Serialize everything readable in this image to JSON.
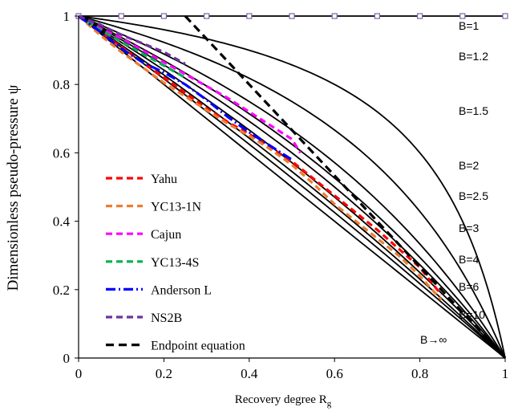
{
  "chart_data": {
    "type": "line",
    "xlabel": "Recovery degree R",
    "xlabel_sub": "g",
    "ylabel": "Dimensionless pseudo-pressure ψ",
    "xlim": [
      0,
      1
    ],
    "ylim": [
      0,
      1
    ],
    "x_ticks": [
      "0",
      "0.2",
      "0.4",
      "0.6",
      "0.8",
      "1"
    ],
    "y_ticks": [
      "0",
      "0.2",
      "0.4",
      "0.6",
      "0.8",
      "1"
    ],
    "grid": false,
    "legend_position": "bottom-left",
    "model_curves": [
      {
        "name": "B=1",
        "B": 1
      },
      {
        "name": "B=1.2",
        "B": 1.2
      },
      {
        "name": "B=1.5",
        "B": 1.5
      },
      {
        "name": "B=2",
        "B": 2
      },
      {
        "name": "B=2.5",
        "B": 2.5
      },
      {
        "name": "B=3",
        "B": 3
      },
      {
        "name": "B=4",
        "B": 4
      },
      {
        "name": "B=6",
        "B": 6
      },
      {
        "name": "B=10",
        "B": 10
      },
      {
        "name": "B→∞",
        "B": null
      }
    ],
    "b1_markers": {
      "x": [
        0,
        0.1,
        0.2,
        0.3,
        0.4,
        0.5,
        0.6,
        0.7,
        0.8,
        0.9,
        1.0
      ],
      "y": 1.0
    },
    "series": [
      {
        "name": "Yahu",
        "color": "#ff0000",
        "x": [
          0,
          0.05,
          0.1,
          0.15,
          0.2,
          0.25,
          0.3,
          0.35,
          0.4,
          0.45,
          0.5,
          0.55,
          0.6,
          0.65,
          0.7,
          0.75,
          0.8,
          0.85
        ],
        "y": [
          1.0,
          0.955,
          0.91,
          0.865,
          0.82,
          0.775,
          0.73,
          0.69,
          0.655,
          0.615,
          0.575,
          0.525,
          0.475,
          0.425,
          0.375,
          0.32,
          0.265,
          0.185
        ]
      },
      {
        "name": "YC13-1N",
        "color": "#ed7d31",
        "x": [
          0,
          0.05,
          0.1,
          0.15,
          0.2,
          0.25,
          0.3,
          0.35,
          0.4,
          0.45,
          0.5,
          0.55,
          0.6,
          0.65,
          0.7,
          0.75,
          0.8,
          0.85
        ],
        "y": [
          1.0,
          0.945,
          0.895,
          0.85,
          0.805,
          0.765,
          0.725,
          0.685,
          0.65,
          0.61,
          0.565,
          0.51,
          0.45,
          0.4,
          0.35,
          0.3,
          0.24,
          0.17
        ]
      },
      {
        "name": "Cajun",
        "color": "#ff00ff",
        "x": [
          0,
          0.05,
          0.1,
          0.15,
          0.2,
          0.25,
          0.3,
          0.35,
          0.4,
          0.45,
          0.5,
          0.52
        ],
        "y": [
          1.0,
          0.965,
          0.935,
          0.9,
          0.865,
          0.83,
          0.795,
          0.76,
          0.72,
          0.68,
          0.64,
          0.6
        ]
      },
      {
        "name": "YC13-4S",
        "color": "#00b050",
        "x": [
          0,
          0.05,
          0.1,
          0.15,
          0.2,
          0.25
        ],
        "y": [
          1.0,
          0.96,
          0.925,
          0.89,
          0.855,
          0.82
        ]
      },
      {
        "name": "Anderson L",
        "color": "#0000ff",
        "x": [
          0,
          0.05,
          0.1,
          0.15,
          0.2,
          0.25,
          0.3,
          0.35,
          0.4,
          0.45,
          0.5
        ],
        "y": [
          1.0,
          0.955,
          0.905,
          0.865,
          0.835,
          0.8,
          0.755,
          0.705,
          0.66,
          0.62,
          0.58
        ]
      },
      {
        "name": "NS2B",
        "color": "#7030a0",
        "x": [
          0,
          0.05,
          0.1,
          0.15,
          0.2,
          0.25
        ],
        "y": [
          1.0,
          0.975,
          0.945,
          0.92,
          0.895,
          0.86
        ]
      },
      {
        "name": "Endpoint equation",
        "color": "#000000",
        "x": [
          0.25,
          1.0
        ],
        "y": [
          1.0,
          0.0
        ]
      }
    ]
  }
}
